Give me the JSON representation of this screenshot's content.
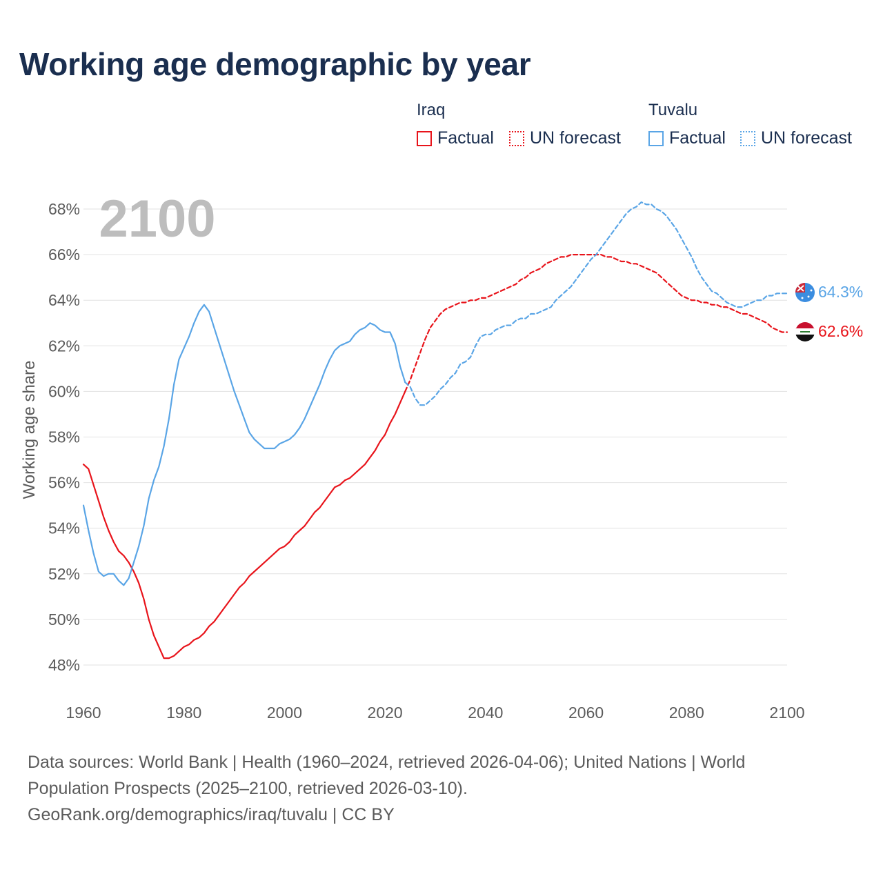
{
  "title": "Working age demographic by year",
  "legend": {
    "groups": [
      {
        "name": "Iraq",
        "color": "#e8141b",
        "factual_label": "Factual",
        "forecast_label": "UN forecast"
      },
      {
        "name": "Tuvalu",
        "color": "#5aa5e6",
        "factual_label": "Factual",
        "forecast_label": "UN forecast"
      }
    ]
  },
  "year_watermark": "2100",
  "end_labels": {
    "iraq": "62.6%",
    "tuvalu": "64.3%"
  },
  "footer": {
    "line1": "Data sources: World Bank | Health (1960–2024, retrieved 2026-04-06); United Nations | World",
    "line2": "Population Prospects (2025–2100, retrieved 2026-03-10).",
    "line3": "GeoRank.org/demographics/iraq/tuvalu | CC BY"
  },
  "chart_data": {
    "type": "line",
    "title": "Working age demographic by year",
    "ylabel": "Working age share",
    "xlabel": "",
    "xlim": [
      1960,
      2100
    ],
    "ylim": [
      47,
      69
    ],
    "x_ticks": [
      1960,
      1980,
      2000,
      2020,
      2040,
      2060,
      2080,
      2100
    ],
    "x_tick_labels": [
      "1960",
      "1980",
      "2000",
      "2020",
      "2040",
      "2060",
      "2080",
      "2100"
    ],
    "y_ticks": [
      48,
      50,
      52,
      54,
      56,
      58,
      60,
      62,
      64,
      66,
      68
    ],
    "y_tick_labels": [
      "48%",
      "50%",
      "52%",
      "54%",
      "56%",
      "58%",
      "60%",
      "62%",
      "64%",
      "66%",
      "68%"
    ],
    "grid": true,
    "series": [
      {
        "name": "Iraq",
        "segment": "Factual",
        "color": "#e8141b",
        "style": "solid",
        "x": [
          1960,
          1961,
          1962,
          1963,
          1964,
          1965,
          1966,
          1967,
          1968,
          1969,
          1970,
          1971,
          1972,
          1973,
          1974,
          1975,
          1976,
          1977,
          1978,
          1979,
          1980,
          1981,
          1982,
          1983,
          1984,
          1985,
          1986,
          1987,
          1988,
          1989,
          1990,
          1991,
          1992,
          1993,
          1994,
          1995,
          1996,
          1997,
          1998,
          1999,
          2000,
          2001,
          2002,
          2003,
          2004,
          2005,
          2006,
          2007,
          2008,
          2009,
          2010,
          2011,
          2012,
          2013,
          2014,
          2015,
          2016,
          2017,
          2018,
          2019,
          2020,
          2021,
          2022,
          2023,
          2024
        ],
        "y": [
          56.8,
          56.6,
          55.9,
          55.2,
          54.5,
          53.9,
          53.4,
          53.0,
          52.8,
          52.5,
          52.1,
          51.6,
          50.9,
          50.0,
          49.3,
          48.8,
          48.3,
          48.3,
          48.4,
          48.6,
          48.8,
          48.9,
          49.1,
          49.2,
          49.4,
          49.7,
          49.9,
          50.2,
          50.5,
          50.8,
          51.1,
          51.4,
          51.6,
          51.9,
          52.1,
          52.3,
          52.5,
          52.7,
          52.9,
          53.1,
          53.2,
          53.4,
          53.7,
          53.9,
          54.1,
          54.4,
          54.7,
          54.9,
          55.2,
          55.5,
          55.8,
          55.9,
          56.1,
          56.2,
          56.4,
          56.6,
          56.8,
          57.1,
          57.4,
          57.8,
          58.1,
          58.6,
          59.0,
          59.5,
          60.0
        ]
      },
      {
        "name": "Iraq",
        "segment": "UN forecast",
        "color": "#e8141b",
        "style": "dashed",
        "x": [
          2024,
          2025,
          2026,
          2027,
          2028,
          2029,
          2030,
          2031,
          2032,
          2033,
          2034,
          2035,
          2036,
          2037,
          2038,
          2039,
          2040,
          2041,
          2042,
          2043,
          2044,
          2045,
          2046,
          2047,
          2048,
          2049,
          2050,
          2051,
          2052,
          2053,
          2054,
          2055,
          2056,
          2057,
          2058,
          2059,
          2060,
          2061,
          2062,
          2063,
          2064,
          2065,
          2066,
          2067,
          2068,
          2069,
          2070,
          2071,
          2072,
          2073,
          2074,
          2075,
          2076,
          2077,
          2078,
          2079,
          2080,
          2081,
          2082,
          2083,
          2084,
          2085,
          2086,
          2087,
          2088,
          2089,
          2090,
          2091,
          2092,
          2093,
          2094,
          2095,
          2096,
          2097,
          2098,
          2099,
          2100
        ],
        "y": [
          60.0,
          60.5,
          61.1,
          61.7,
          62.3,
          62.8,
          63.1,
          63.4,
          63.6,
          63.7,
          63.8,
          63.9,
          63.9,
          64.0,
          64.0,
          64.1,
          64.1,
          64.2,
          64.3,
          64.4,
          64.5,
          64.6,
          64.7,
          64.9,
          65.0,
          65.2,
          65.3,
          65.4,
          65.6,
          65.7,
          65.8,
          65.9,
          65.9,
          66.0,
          66.0,
          66.0,
          66.0,
          66.0,
          66.0,
          66.0,
          65.9,
          65.9,
          65.8,
          65.7,
          65.7,
          65.6,
          65.6,
          65.5,
          65.4,
          65.3,
          65.2,
          65.0,
          64.8,
          64.6,
          64.4,
          64.2,
          64.1,
          64.0,
          64.0,
          63.9,
          63.9,
          63.8,
          63.8,
          63.7,
          63.7,
          63.6,
          63.5,
          63.4,
          63.4,
          63.3,
          63.2,
          63.1,
          63.0,
          62.8,
          62.7,
          62.6,
          62.6
        ]
      },
      {
        "name": "Tuvalu",
        "segment": "Factual",
        "color": "#5aa5e6",
        "style": "solid",
        "x": [
          1960,
          1961,
          1962,
          1963,
          1964,
          1965,
          1966,
          1967,
          1968,
          1969,
          1970,
          1971,
          1972,
          1973,
          1974,
          1975,
          1976,
          1977,
          1978,
          1979,
          1980,
          1981,
          1982,
          1983,
          1984,
          1985,
          1986,
          1987,
          1988,
          1989,
          1990,
          1991,
          1992,
          1993,
          1994,
          1995,
          1996,
          1997,
          1998,
          1999,
          2000,
          2001,
          2002,
          2003,
          2004,
          2005,
          2006,
          2007,
          2008,
          2009,
          2010,
          2011,
          2012,
          2013,
          2014,
          2015,
          2016,
          2017,
          2018,
          2019,
          2020,
          2021,
          2022,
          2023,
          2024
        ],
        "y": [
          55.0,
          53.9,
          52.9,
          52.1,
          51.9,
          52.0,
          52.0,
          51.7,
          51.5,
          51.8,
          52.5,
          53.2,
          54.1,
          55.3,
          56.1,
          56.7,
          57.6,
          58.8,
          60.3,
          61.4,
          61.9,
          62.4,
          63.0,
          63.5,
          63.8,
          63.5,
          62.8,
          62.1,
          61.4,
          60.7,
          60.0,
          59.4,
          58.8,
          58.2,
          57.9,
          57.7,
          57.5,
          57.5,
          57.5,
          57.7,
          57.8,
          57.9,
          58.1,
          58.4,
          58.8,
          59.3,
          59.8,
          60.3,
          60.9,
          61.4,
          61.8,
          62.0,
          62.1,
          62.2,
          62.5,
          62.7,
          62.8,
          63.0,
          62.9,
          62.7,
          62.6,
          62.6,
          62.1,
          61.1,
          60.4
        ]
      },
      {
        "name": "Tuvalu",
        "segment": "UN forecast",
        "color": "#5aa5e6",
        "style": "dashed",
        "x": [
          2024,
          2025,
          2026,
          2027,
          2028,
          2029,
          2030,
          2031,
          2032,
          2033,
          2034,
          2035,
          2036,
          2037,
          2038,
          2039,
          2040,
          2041,
          2042,
          2043,
          2044,
          2045,
          2046,
          2047,
          2048,
          2049,
          2050,
          2051,
          2052,
          2053,
          2054,
          2055,
          2056,
          2057,
          2058,
          2059,
          2060,
          2061,
          2062,
          2063,
          2064,
          2065,
          2066,
          2067,
          2068,
          2069,
          2070,
          2071,
          2072,
          2073,
          2074,
          2075,
          2076,
          2077,
          2078,
          2079,
          2080,
          2081,
          2082,
          2083,
          2084,
          2085,
          2086,
          2087,
          2088,
          2089,
          2090,
          2091,
          2092,
          2093,
          2094,
          2095,
          2096,
          2097,
          2098,
          2099,
          2100
        ],
        "y": [
          60.4,
          60.2,
          59.7,
          59.4,
          59.4,
          59.6,
          59.8,
          60.1,
          60.3,
          60.6,
          60.8,
          61.2,
          61.3,
          61.5,
          62.0,
          62.4,
          62.5,
          62.5,
          62.7,
          62.8,
          62.9,
          62.9,
          63.1,
          63.2,
          63.2,
          63.4,
          63.4,
          63.5,
          63.6,
          63.7,
          64.0,
          64.2,
          64.4,
          64.6,
          64.9,
          65.2,
          65.5,
          65.8,
          66.0,
          66.3,
          66.6,
          66.9,
          67.2,
          67.5,
          67.8,
          68.0,
          68.1,
          68.3,
          68.2,
          68.2,
          68.0,
          67.9,
          67.7,
          67.4,
          67.1,
          66.7,
          66.3,
          65.9,
          65.4,
          65.0,
          64.7,
          64.4,
          64.3,
          64.1,
          63.9,
          63.8,
          63.7,
          63.7,
          63.8,
          63.9,
          64.0,
          64.0,
          64.2,
          64.2,
          64.3,
          64.3,
          64.3
        ]
      }
    ]
  }
}
